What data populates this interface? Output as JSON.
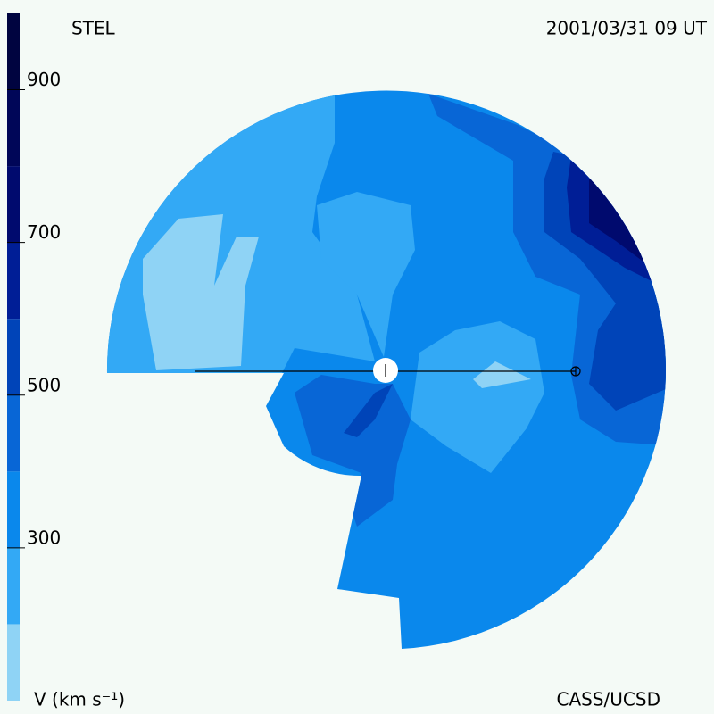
{
  "chart_data": {
    "type": "colorbar",
    "title": "STEL",
    "subtitle": "2001/03/31 09 UT",
    "ylabel": "V (km s⁻¹)",
    "footer": "CASS/UCSD",
    "bins": [
      100,
      200,
      300,
      400,
      500,
      600,
      700,
      800,
      900,
      1000
    ],
    "colors": [
      "#8fd3f5",
      "#33a9f5",
      "#0a88ec",
      "#0866d6",
      "#0044b8",
      "#001e96",
      "#000a6e",
      "#000658",
      "#000440"
    ],
    "ylim": [
      100,
      1000
    ],
    "yticks": [
      300,
      500,
      700,
      900
    ]
  }
}
